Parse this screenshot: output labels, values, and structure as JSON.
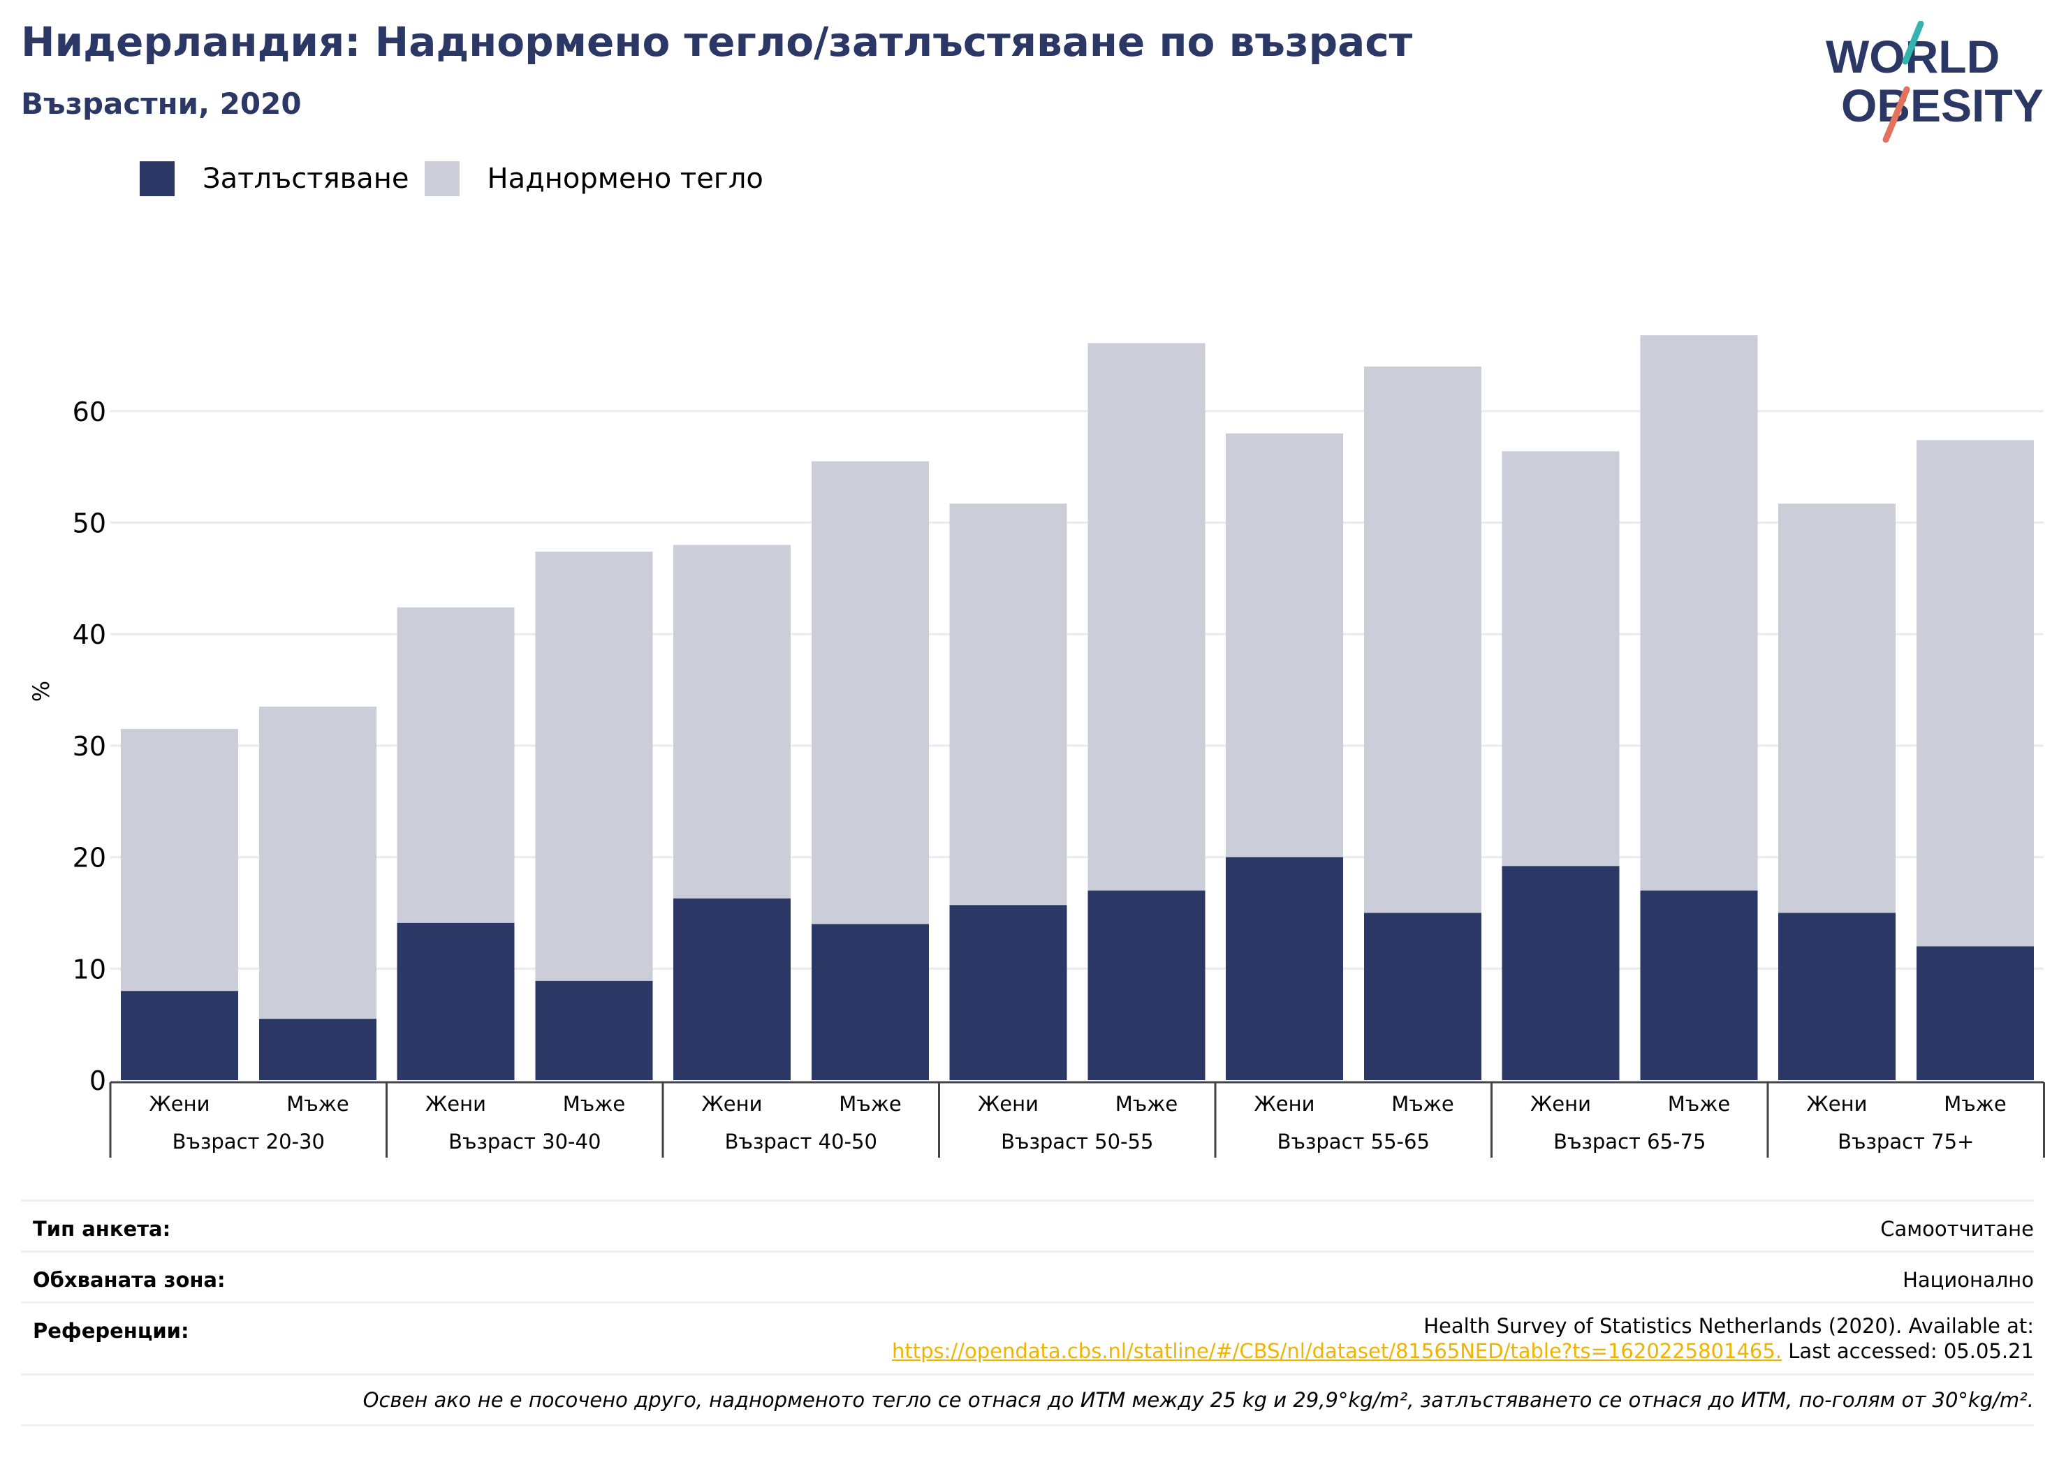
{
  "header": {
    "title": "Нидерландия: Наднормено тегло/затлъстяване по възраст",
    "subtitle": "Възрастни, 2020"
  },
  "logo": {
    "line1": "WORLD",
    "line2": "OBESITY"
  },
  "colors": {
    "obesity": "#2b3765",
    "overweight": "#cbcdd9",
    "title": "#2b3765",
    "link": "#f0b400",
    "logo_teal": "#35b3ae",
    "logo_coral": "#e2725b"
  },
  "legend": {
    "obesity_label": "Затлъстяване",
    "overweight_label": "Наднормено тегло"
  },
  "chart_data": {
    "type": "bar",
    "stacked": true,
    "ylabel": "%",
    "ylim": [
      0,
      70
    ],
    "yticks": [
      0,
      10,
      20,
      30,
      40,
      50,
      60
    ],
    "grid": true,
    "legend_position": "top-left",
    "groups": [
      "Възраст 20-30",
      "Възраст 30-40",
      "Възраст 40-50",
      "Възраст 50-55",
      "Възраст 55-65",
      "Възраст 65-75",
      "Възраст 75+"
    ],
    "sexes": [
      "Жени",
      "Мъже"
    ],
    "series": [
      {
        "name": "Затлъстяване",
        "values": [
          8.0,
          5.5,
          14.1,
          8.9,
          16.3,
          14.0,
          15.7,
          17.0,
          20.0,
          15.0,
          19.2,
          17.0,
          15.0,
          12.0
        ]
      },
      {
        "name": "Наднормено тегло",
        "values": [
          23.5,
          28.0,
          28.3,
          38.5,
          31.7,
          41.5,
          36.0,
          49.1,
          38.0,
          49.0,
          37.2,
          49.8,
          36.7,
          45.4
        ]
      }
    ]
  },
  "footer": {
    "survey_type_label": "Тип анкета:",
    "survey_type_value": "Самоотчитане",
    "coverage_label": "Обхваната зона:",
    "coverage_value": "Национално",
    "references_label": "Референции:",
    "references_line1": "Health Survey of Statistics Netherlands (2020). Available at:",
    "references_link": "https://opendata.cbs.nl/statline/#/CBS/nl/dataset/81565NED/table?ts=1620225801465.",
    "references_tail": " Last accessed: 05.05.21",
    "note": "Освен ако не е посочено друго, наднорменото тегло се отнася до ИТМ между 25 kg и 29,9°kg/m², затлъстяването се отнася до ИТМ, по-голям от 30°kg/m²."
  }
}
